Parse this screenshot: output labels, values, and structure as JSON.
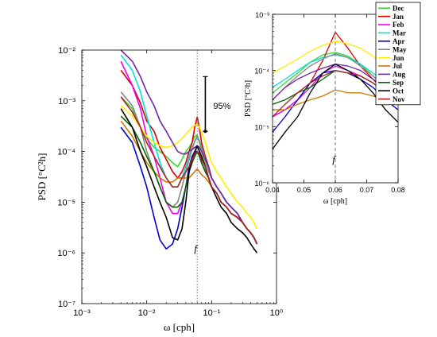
{
  "chart_data": [
    {
      "type": "line",
      "panel": "main",
      "xscale": "log",
      "yscale": "log",
      "xlim": [
        0.001,
        1
      ],
      "ylim": [
        1e-07,
        0.01
      ],
      "xlabel": "ω [cph]",
      "ylabel": "PSD  [°C²h]",
      "xticks": [
        {
          "value": 0.001,
          "label": "10⁻³"
        },
        {
          "value": 0.01,
          "label": "10⁻²"
        },
        {
          "value": 0.1,
          "label": "10⁻¹"
        },
        {
          "value": 1,
          "label": "10⁰"
        }
      ],
      "yticks": [
        {
          "value": 1e-07,
          "label": "10⁻⁷"
        },
        {
          "value": 1e-06,
          "label": "10⁻⁶"
        },
        {
          "value": 1e-05,
          "label": "10⁻⁵"
        },
        {
          "value": 0.0001,
          "label": "10⁻⁴"
        },
        {
          "value": 0.001,
          "label": "10⁻³"
        },
        {
          "value": 0.01,
          "label": "10⁻²"
        }
      ],
      "vline": {
        "x": 0.06,
        "label": "f",
        "style": "dotted"
      },
      "errorbar": {
        "x": 0.08,
        "ylow": 0.00025,
        "yhigh": 0.003,
        "label": "95%"
      },
      "x": [
        0.004,
        0.006,
        0.008,
        0.01,
        0.013,
        0.016,
        0.02,
        0.025,
        0.03,
        0.035,
        0.04,
        0.045,
        0.05,
        0.055,
        0.06,
        0.065,
        0.07,
        0.08,
        0.09,
        0.1,
        0.12,
        0.14,
        0.17,
        0.2,
        0.25,
        0.3,
        0.35,
        0.4,
        0.45,
        0.5
      ],
      "series": [
        {
          "name": "Dec",
          "color": "#33dd33",
          "values": [
            0.0012,
            0.0007,
            0.0003,
            0.00018,
            0.00012,
            0.0001,
            8e-05,
            6e-05,
            5e-05,
            7e-05,
            0.0001,
            0.00012,
            0.00015,
            0.0002,
            0.00021,
            0.00015,
            0.0001,
            6e-05,
            4e-05,
            3e-05,
            2e-05,
            1.5e-05,
            1e-05,
            8e-06,
            6e-06,
            4e-06,
            3e-06,
            2.5e-06,
            2e-06,
            1.5e-06
          ]
        },
        {
          "name": "Jan",
          "color": "#dd0000",
          "values": [
            0.004,
            0.002,
            0.0009,
            0.0004,
            0.00025,
            0.00012,
            7e-05,
            4e-05,
            3e-05,
            4e-05,
            6e-05,
            0.0001,
            0.00015,
            0.0003,
            0.00048,
            0.00028,
            0.00015,
            8e-05,
            5e-05,
            3e-05,
            2e-05,
            1.5e-05,
            1e-05,
            8e-06,
            6e-06,
            4e-06,
            3e-06,
            2.5e-06,
            2e-06,
            1.5e-06
          ]
        },
        {
          "name": "Feb",
          "color": "#ee00ee",
          "values": [
            0.006,
            0.002,
            0.0007,
            0.0002,
            8e-05,
            3e-05,
            1e-05,
            6e-06,
            6e-06,
            1e-05,
            2e-05,
            4e-05,
            7e-05,
            0.0001,
            0.00012,
            0.0001,
            8e-05,
            5e-05,
            3e-05,
            2e-05,
            1.5e-05,
            1e-05,
            8e-06,
            6e-06,
            5e-06,
            4e-06,
            3e-06,
            2.5e-06,
            2e-06,
            1.5e-06
          ]
        },
        {
          "name": "Mar",
          "color": "#00e0e0",
          "values": [
            0.008,
            0.004,
            0.0015,
            0.0005,
            0.00015,
            6e-05,
            3e-05,
            2e-05,
            2e-05,
            3e-05,
            5e-05,
            8e-05,
            0.00012,
            0.00016,
            0.00019,
            0.00016,
            0.00012,
            7e-05,
            4e-05,
            3e-05,
            2e-05,
            1.5e-05,
            1e-05,
            8e-06,
            6e-06,
            4e-06,
            3e-06,
            2.5e-06,
            2e-06,
            1.5e-06
          ]
        },
        {
          "name": "Apr",
          "color": "#0000cc",
          "values": [
            0.0003,
            0.00015,
            5e-05,
            2e-05,
            5e-06,
            1.8e-06,
            1.2e-06,
            1.5e-06,
            3e-06,
            8e-06,
            2e-05,
            5e-05,
            8e-05,
            0.0001,
            0.0001,
            8e-05,
            6e-05,
            4e-05,
            3e-05,
            2e-05,
            1.5e-05,
            1e-05,
            8e-06,
            6e-06,
            5e-06,
            4e-06,
            3e-06,
            2.5e-06,
            2e-06,
            1.5e-06
          ]
        },
        {
          "name": "May",
          "color": "#888888",
          "values": [
            0.0015,
            0.0008,
            0.0003,
            0.0001,
            4e-05,
            2e-05,
            1e-05,
            8e-06,
            1e-05,
            2e-05,
            4e-05,
            7e-05,
            0.00011,
            0.00016,
            0.0002,
            0.00016,
            0.00012,
            7e-05,
            4e-05,
            3e-05,
            2e-05,
            1.5e-05,
            1e-05,
            8e-06,
            6e-06,
            4e-06,
            3e-06,
            2.5e-06,
            2e-06,
            1.5e-06
          ]
        },
        {
          "name": "Jun",
          "color": "#ffee00",
          "values": [
            0.0008,
            0.0005,
            0.0003,
            0.0002,
            0.00015,
            0.00013,
            0.00012,
            0.00013,
            0.00015,
            0.00018,
            0.00022,
            0.00026,
            0.0003,
            0.00033,
            0.00034,
            0.0003,
            0.00024,
            0.00015,
            9e-05,
            6e-05,
            4e-05,
            3e-05,
            2e-05,
            1.5e-05,
            1e-05,
            8e-06,
            6e-06,
            5e-06,
            4e-06,
            3e-06
          ]
        },
        {
          "name": "Jul",
          "color": "#cc7700",
          "values": [
            0.0004,
            0.0002,
            0.0001,
            6e-05,
            4e-05,
            3e-05,
            2.5e-05,
            2.5e-05,
            3e-05,
            3e-05,
            3e-05,
            3e-05,
            3.5e-05,
            4e-05,
            4.5e-05,
            4e-05,
            3.5e-05,
            3e-05,
            2.5e-05,
            2e-05,
            1.5e-05,
            1e-05,
            8e-06,
            6e-06,
            5e-06,
            4e-06,
            3e-06,
            2.5e-06,
            2e-06,
            1.5e-06
          ]
        },
        {
          "name": "Aug",
          "color": "#7722aa",
          "values": [
            0.01,
            0.006,
            0.003,
            0.0015,
            0.0008,
            0.0004,
            0.00025,
            0.00015,
            0.0001,
            9e-05,
            9e-05,
            0.0001,
            0.00011,
            0.00012,
            0.00013,
            0.00012,
            0.0001,
            7e-05,
            5e-05,
            3e-05,
            2e-05,
            1.5e-05,
            1e-05,
            8e-06,
            6e-06,
            4e-06,
            3e-06,
            2.5e-06,
            2e-06,
            1.5e-06
          ]
        },
        {
          "name": "Sep",
          "color": "#006600",
          "values": [
            0.0005,
            0.0003,
            0.00015,
            8e-05,
            4e-05,
            2e-05,
            1e-05,
            8e-06,
            8e-06,
            1e-05,
            2e-05,
            4e-05,
            6e-05,
            8e-05,
            0.0001,
            8e-05,
            6e-05,
            4e-05,
            3e-05,
            2e-05,
            1.5e-05,
            1e-05,
            8e-06,
            6e-06,
            5e-06,
            4e-06,
            3e-06,
            2.5e-06,
            2e-06,
            1.5e-06
          ]
        },
        {
          "name": "Oct",
          "color": "#000000",
          "values": [
            0.0007,
            0.0003,
            0.0001,
            5e-05,
            2e-05,
            1e-05,
            5e-06,
            2e-06,
            1.8e-06,
            3e-06,
            1e-05,
            4e-05,
            7e-05,
            0.0001,
            0.00013,
            0.0001,
            8e-05,
            5e-05,
            3e-05,
            2e-05,
            1.2e-05,
            8e-06,
            6e-06,
            4e-06,
            3e-06,
            2.5e-06,
            2e-06,
            1.5e-06,
            1.2e-06,
            1e-06
          ]
        },
        {
          "name": "Nov",
          "color": "#aa2222",
          "values": [
            0.0012,
            0.0006,
            0.0003,
            0.00015,
            8e-05,
            5e-05,
            3e-05,
            2e-05,
            2e-05,
            3e-05,
            4e-05,
            5e-05,
            7e-05,
            9e-05,
            0.0001,
            9e-05,
            7e-05,
            5e-05,
            3e-05,
            2e-05,
            1.5e-05,
            1e-05,
            8e-06,
            6e-06,
            5e-06,
            4e-06,
            3e-06,
            2.5e-06,
            2e-06,
            1.5e-06
          ]
        }
      ]
    },
    {
      "type": "line",
      "panel": "inset",
      "xscale": "linear",
      "yscale": "log",
      "xlim": [
        0.04,
        0.08
      ],
      "ylim": [
        1e-06,
        0.001
      ],
      "xlabel": "ω [cph]",
      "ylabel": "PSD [°C²h]",
      "xticks": [
        {
          "value": 0.04,
          "label": "0.04"
        },
        {
          "value": 0.05,
          "label": "0.05"
        },
        {
          "value": 0.06,
          "label": "0.06"
        },
        {
          "value": 0.07,
          "label": "0.07"
        },
        {
          "value": 0.08,
          "label": "0.08"
        }
      ],
      "yticks": [
        {
          "value": 1e-06,
          "label": "10⁻⁶"
        },
        {
          "value": 1e-05,
          "label": "10⁻⁵"
        },
        {
          "value": 0.0001,
          "label": "10⁻⁴"
        },
        {
          "value": 0.001,
          "label": "10⁻³"
        }
      ],
      "vline": {
        "x": 0.06,
        "label": "f",
        "style": "dashed"
      },
      "x": [
        0.04,
        0.044,
        0.048,
        0.052,
        0.056,
        0.06,
        0.064,
        0.068,
        0.072,
        0.076,
        0.08
      ],
      "series": [
        {
          "name": "Dec",
          "color": "#33dd33",
          "values": [
            4e-05,
            6e-05,
            9e-05,
            0.00014,
            0.00019,
            0.00021,
            0.00018,
            0.00013,
            8e-05,
            5e-05,
            3e-05
          ]
        },
        {
          "name": "Jan",
          "color": "#dd0000",
          "values": [
            1.5e-05,
            2e-05,
            3e-05,
            6e-05,
            0.00015,
            0.00048,
            0.00025,
            0.00012,
            7e-05,
            4e-05,
            3e-05
          ]
        },
        {
          "name": "Feb",
          "color": "#ee00ee",
          "values": [
            1.5e-05,
            2e-05,
            3e-05,
            5e-05,
            9e-05,
            0.00012,
            0.0001,
            8e-05,
            6e-05,
            4e-05,
            3e-05
          ]
        },
        {
          "name": "Mar",
          "color": "#00e0e0",
          "values": [
            5e-05,
            7e-05,
            0.0001,
            0.00014,
            0.00017,
            0.00019,
            0.00017,
            0.00013,
            9e-05,
            6e-05,
            4e-05
          ]
        },
        {
          "name": "Apr",
          "color": "#0000cc",
          "values": [
            8e-06,
            1.5e-05,
            3e-05,
            6e-05,
            9e-05,
            0.0001,
            9e-05,
            7e-05,
            5e-05,
            3e-05,
            2e-05
          ]
        },
        {
          "name": "May",
          "color": "#888888",
          "values": [
            3e-05,
            5e-05,
            8e-05,
            0.00012,
            0.00016,
            0.0002,
            0.00017,
            0.00012,
            8e-05,
            5e-05,
            3e-05
          ]
        },
        {
          "name": "Jun",
          "color": "#ffee00",
          "values": [
            9e-05,
            0.00012,
            0.00016,
            0.00022,
            0.00028,
            0.00033,
            0.0003,
            0.00025,
            0.00018,
            0.00012,
            8e-05
          ]
        },
        {
          "name": "Jul",
          "color": "#cc7700",
          "values": [
            2e-05,
            2e-05,
            2.5e-05,
            3e-05,
            3.5e-05,
            4.5e-05,
            4e-05,
            4e-05,
            3.5e-05,
            3e-05,
            3e-05
          ]
        },
        {
          "name": "Aug",
          "color": "#7722aa",
          "values": [
            3e-05,
            5e-05,
            7e-05,
            9e-05,
            0.00011,
            0.00013,
            0.00012,
            0.0001,
            7e-05,
            5e-05,
            4e-05
          ]
        },
        {
          "name": "Sep",
          "color": "#006600",
          "values": [
            2.5e-05,
            3e-05,
            4e-05,
            5e-05,
            7e-05,
            0.0001,
            9e-05,
            8e-05,
            6e-05,
            4e-05,
            3e-05
          ]
        },
        {
          "name": "Oct",
          "color": "#000000",
          "values": [
            4e-06,
            8e-06,
            1.5e-05,
            4e-05,
            9e-05,
            0.00013,
            0.0001,
            7e-05,
            4e-05,
            2e-05,
            1.2e-05
          ]
        },
        {
          "name": "Nov",
          "color": "#aa2222",
          "values": [
            1.5e-05,
            2.5e-05,
            4e-05,
            6e-05,
            8e-05,
            0.0001,
            9e-05,
            8e-05,
            6e-05,
            4e-05,
            3e-05
          ]
        }
      ],
      "legend": {
        "placement": "right",
        "entries": [
          "Dec",
          "Jan",
          "Feb",
          "Mar",
          "Apr",
          "May",
          "Jun",
          "Jul",
          "Aug",
          "Sep",
          "Oct",
          "Nov"
        ]
      }
    }
  ]
}
